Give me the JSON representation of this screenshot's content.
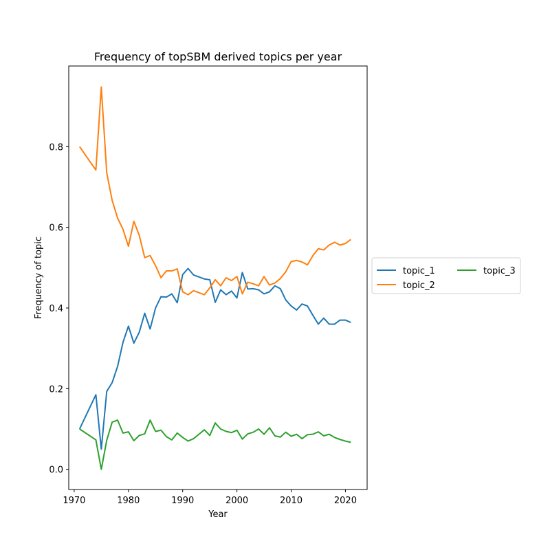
{
  "chart_data": {
    "type": "line",
    "title": "Frequency of topSBM derived topics per year",
    "xlabel": "Year",
    "ylabel": "Frequency of topic",
    "xlim": [
      1969,
      2024
    ],
    "ylim": [
      -0.05,
      1.0
    ],
    "xticks": [
      1970,
      1980,
      1990,
      2000,
      2010,
      2020
    ],
    "yticks": [
      0.0,
      0.2,
      0.4,
      0.6,
      0.8
    ],
    "ytick_labels": [
      "0.0",
      "0.2",
      "0.4",
      "0.6",
      "0.8"
    ],
    "grid": false,
    "legend_placement": "right, outside plot",
    "x": [
      1971,
      1974,
      1975,
      1976,
      1977,
      1978,
      1979,
      1980,
      1981,
      1982,
      1983,
      1984,
      1985,
      1986,
      1987,
      1988,
      1989,
      1990,
      1991,
      1992,
      1993,
      1994,
      1995,
      1996,
      1997,
      1998,
      1999,
      2000,
      2001,
      2002,
      2003,
      2004,
      2005,
      2006,
      2007,
      2008,
      2009,
      2010,
      2011,
      2012,
      2013,
      2014,
      2015,
      2016,
      2017,
      2018,
      2019,
      2020,
      2021
    ],
    "series": [
      {
        "name": "topic_1",
        "color": "#1f77b4",
        "values": [
          0.1,
          0.185,
          0.05,
          0.193,
          0.215,
          0.255,
          0.315,
          0.355,
          0.313,
          0.34,
          0.387,
          0.348,
          0.4,
          0.428,
          0.427,
          0.435,
          0.413,
          0.483,
          0.498,
          0.482,
          0.477,
          0.472,
          0.47,
          0.414,
          0.445,
          0.433,
          0.442,
          0.425,
          0.488,
          0.447,
          0.448,
          0.445,
          0.435,
          0.44,
          0.455,
          0.448,
          0.42,
          0.405,
          0.395,
          0.41,
          0.405,
          0.382,
          0.36,
          0.375,
          0.36,
          0.36,
          0.37,
          0.37,
          0.364
        ]
      },
      {
        "name": "topic_2",
        "color": "#ff7f0e",
        "values": [
          0.8,
          0.742,
          0.948,
          0.735,
          0.667,
          0.623,
          0.595,
          0.553,
          0.615,
          0.58,
          0.525,
          0.53,
          0.505,
          0.475,
          0.492,
          0.492,
          0.497,
          0.44,
          0.433,
          0.443,
          0.438,
          0.433,
          0.45,
          0.47,
          0.455,
          0.475,
          0.468,
          0.478,
          0.435,
          0.464,
          0.46,
          0.455,
          0.478,
          0.457,
          0.462,
          0.473,
          0.49,
          0.515,
          0.518,
          0.514,
          0.507,
          0.53,
          0.547,
          0.544,
          0.556,
          0.563,
          0.556,
          0.56,
          0.57
        ]
      },
      {
        "name": "topic_3",
        "color": "#2ca02c",
        "values": [
          0.1,
          0.073,
          0.0,
          0.072,
          0.117,
          0.122,
          0.09,
          0.093,
          0.071,
          0.084,
          0.088,
          0.122,
          0.094,
          0.097,
          0.081,
          0.073,
          0.09,
          0.079,
          0.07,
          0.076,
          0.087,
          0.098,
          0.084,
          0.115,
          0.1,
          0.094,
          0.091,
          0.097,
          0.075,
          0.088,
          0.092,
          0.1,
          0.087,
          0.103,
          0.083,
          0.08,
          0.092,
          0.082,
          0.087,
          0.076,
          0.086,
          0.087,
          0.093,
          0.083,
          0.087,
          0.079,
          0.074,
          0.07,
          0.067
        ]
      }
    ]
  }
}
